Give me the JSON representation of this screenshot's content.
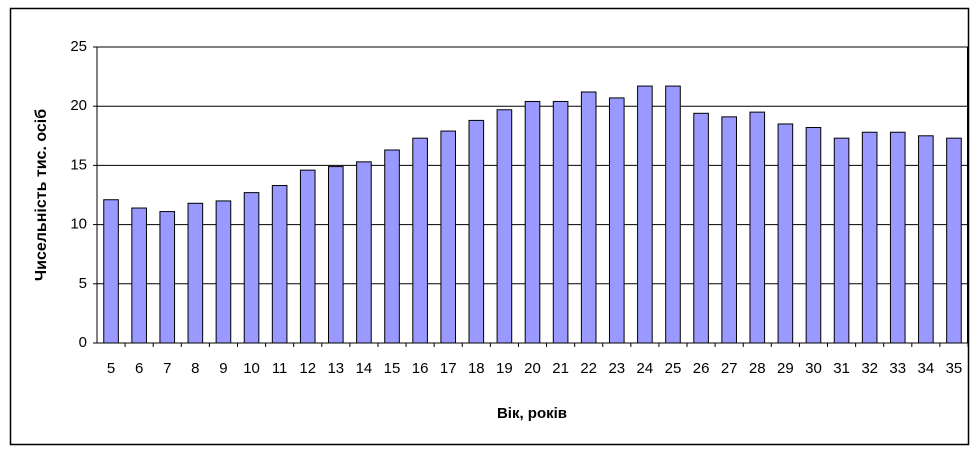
{
  "chart_data": {
    "type": "bar",
    "x_label": "Вік, років",
    "y_label": "Чисельність тис. осіб",
    "categories": [
      "5",
      "6",
      "7",
      "8",
      "9",
      "10",
      "11",
      "12",
      "13",
      "14",
      "15",
      "16",
      "17",
      "18",
      "19",
      "20",
      "21",
      "22",
      "23",
      "24",
      "25",
      "26",
      "27",
      "28",
      "29",
      "30",
      "31",
      "32",
      "33",
      "34",
      "35"
    ],
    "values": [
      12.1,
      11.4,
      11.1,
      11.8,
      12.0,
      12.7,
      13.3,
      14.6,
      14.9,
      15.3,
      16.3,
      17.3,
      17.9,
      18.8,
      19.7,
      20.4,
      20.4,
      21.2,
      20.7,
      21.7,
      21.7,
      19.4,
      19.1,
      19.5,
      18.5,
      18.2,
      17.3,
      17.8,
      17.8,
      17.5,
      17.3
    ],
    "color": "#9999ff",
    "ylim": [
      0,
      25
    ],
    "yticks": [
      0,
      5,
      10,
      15,
      20,
      25
    ],
    "grid": true
  }
}
